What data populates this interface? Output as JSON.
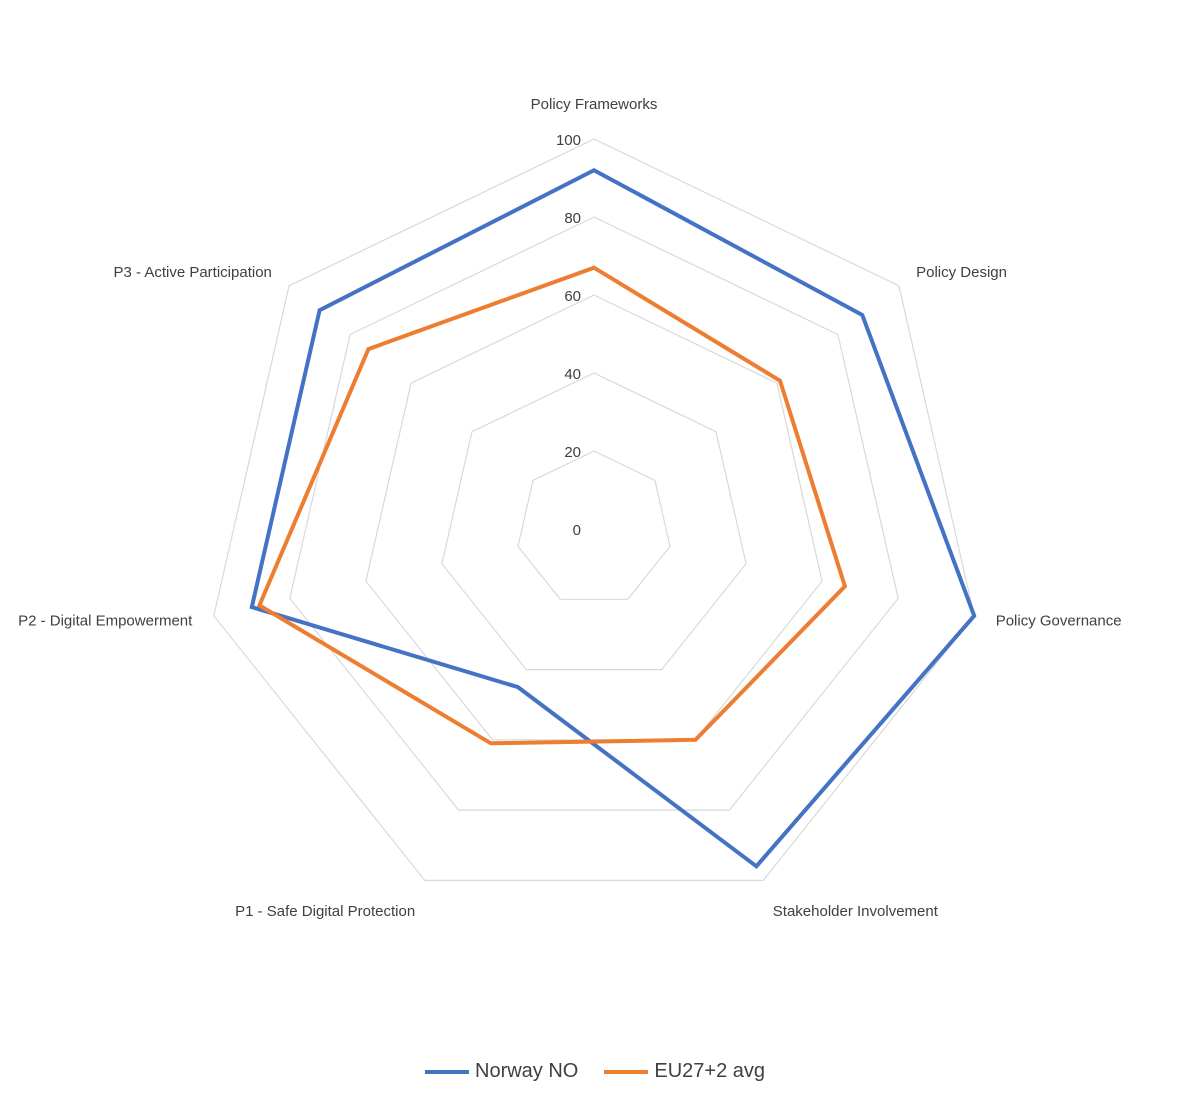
{
  "chart_data": {
    "type": "radar",
    "categories": [
      "Policy Frameworks",
      "Policy Design",
      "Policy Governance",
      "Stakeholder Involvement",
      "P1 - Safe Digital Protection",
      "P2 - Digital Empowerment",
      "P3 - Active Participation"
    ],
    "rlim": [
      0,
      100
    ],
    "ticks": [
      0,
      20,
      40,
      60,
      80,
      100
    ],
    "tick_labels": [
      "0",
      "20",
      "40",
      "60",
      "80",
      "100"
    ],
    "grid": true,
    "legend_position": "bottom",
    "series": [
      {
        "name": "Norway NO",
        "color": "#4472C4",
        "values": [
          92,
          88,
          100,
          96,
          45,
          90,
          90
        ]
      },
      {
        "name": "EU27+2 avg",
        "color": "#ED7D31",
        "values": [
          67,
          61,
          66,
          60,
          61,
          88,
          74
        ]
      }
    ]
  }
}
